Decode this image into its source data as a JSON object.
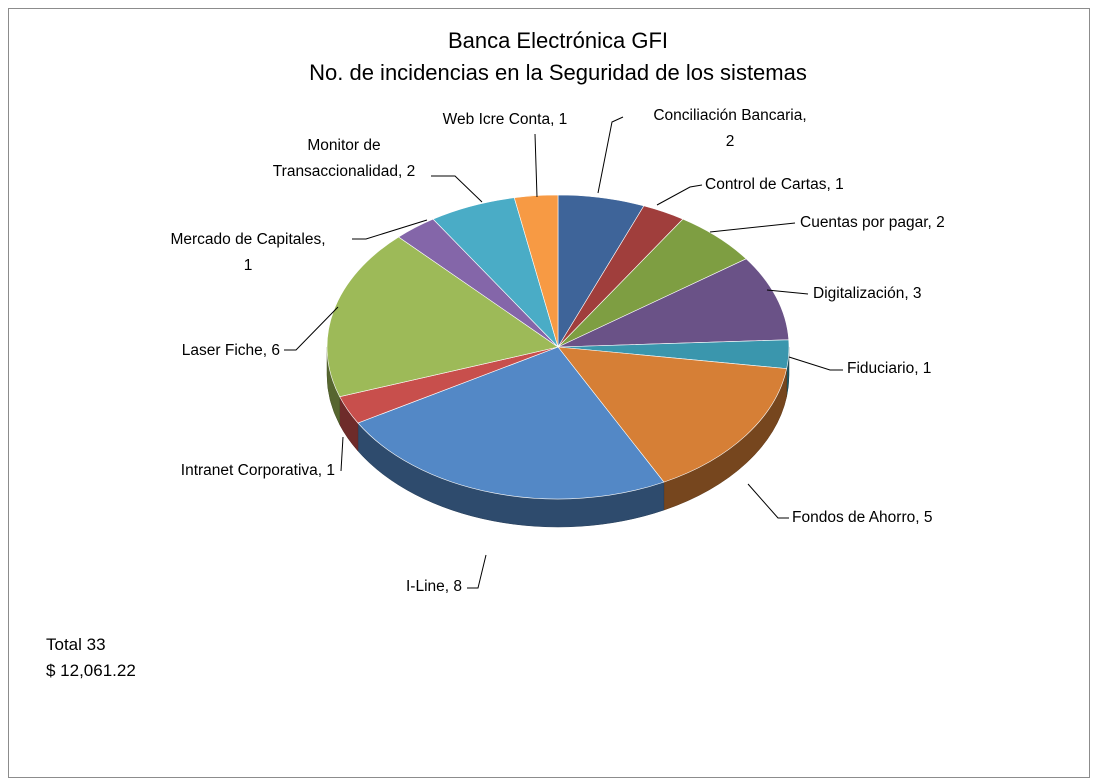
{
  "chart_data": {
    "type": "pie",
    "title": [
      "Banca Electrónica GFI",
      "No. de incidencias en la Seguridad de los sistemas"
    ],
    "series": [
      {
        "name": "Conciliación Bancaria",
        "value": 2,
        "color": "#3E6499",
        "label": [
          "Conciliación Bancaria,",
          "2"
        ]
      },
      {
        "name": "Control de Cartas",
        "value": 1,
        "color": "#A03E3C",
        "label": [
          "Control de Cartas,  1"
        ]
      },
      {
        "name": "Cuentas por pagar",
        "value": 2,
        "color": "#7E9E42",
        "label": [
          "Cuentas por pagar, 2"
        ]
      },
      {
        "name": "Digitalización",
        "value": 3,
        "color": "#6A5287",
        "label": [
          "Digitalización,  3"
        ]
      },
      {
        "name": "Fiduciario",
        "value": 1,
        "color": "#3A96AD",
        "label": [
          "Fiduciario, 1"
        ]
      },
      {
        "name": "Fondos de Ahorro",
        "value": 5,
        "color": "#D67F36",
        "label": [
          "Fondos de Ahorro, 5"
        ]
      },
      {
        "name": "I-Line",
        "value": 8,
        "color": "#5388C6",
        "label": [
          "I-Line, 8"
        ]
      },
      {
        "name": "Intranet Corporativa",
        "value": 1,
        "color": "#C84F4C",
        "label": [
          "Intranet Corporativa, 1"
        ]
      },
      {
        "name": "Laser Fiche",
        "value": 6,
        "color": "#9DBA58",
        "label": [
          "Laser Fiche, 6"
        ]
      },
      {
        "name": "Mercado de Capitales",
        "value": 1,
        "color": "#8466A9",
        "label": [
          "Mercado de Capitales,",
          "1"
        ]
      },
      {
        "name": "Monitor de Transaccionalidad",
        "value": 2,
        "color": "#4AACC6",
        "label": [
          "Monitor de",
          "Transaccionalidad, 2"
        ]
      },
      {
        "name": "Web Icre Conta",
        "value": 1,
        "color": "#F79A44",
        "label": [
          "Web Icre Conta, 1"
        ]
      }
    ]
  },
  "footer": {
    "total": "Total 33",
    "amount": "$ 12,061.22"
  }
}
